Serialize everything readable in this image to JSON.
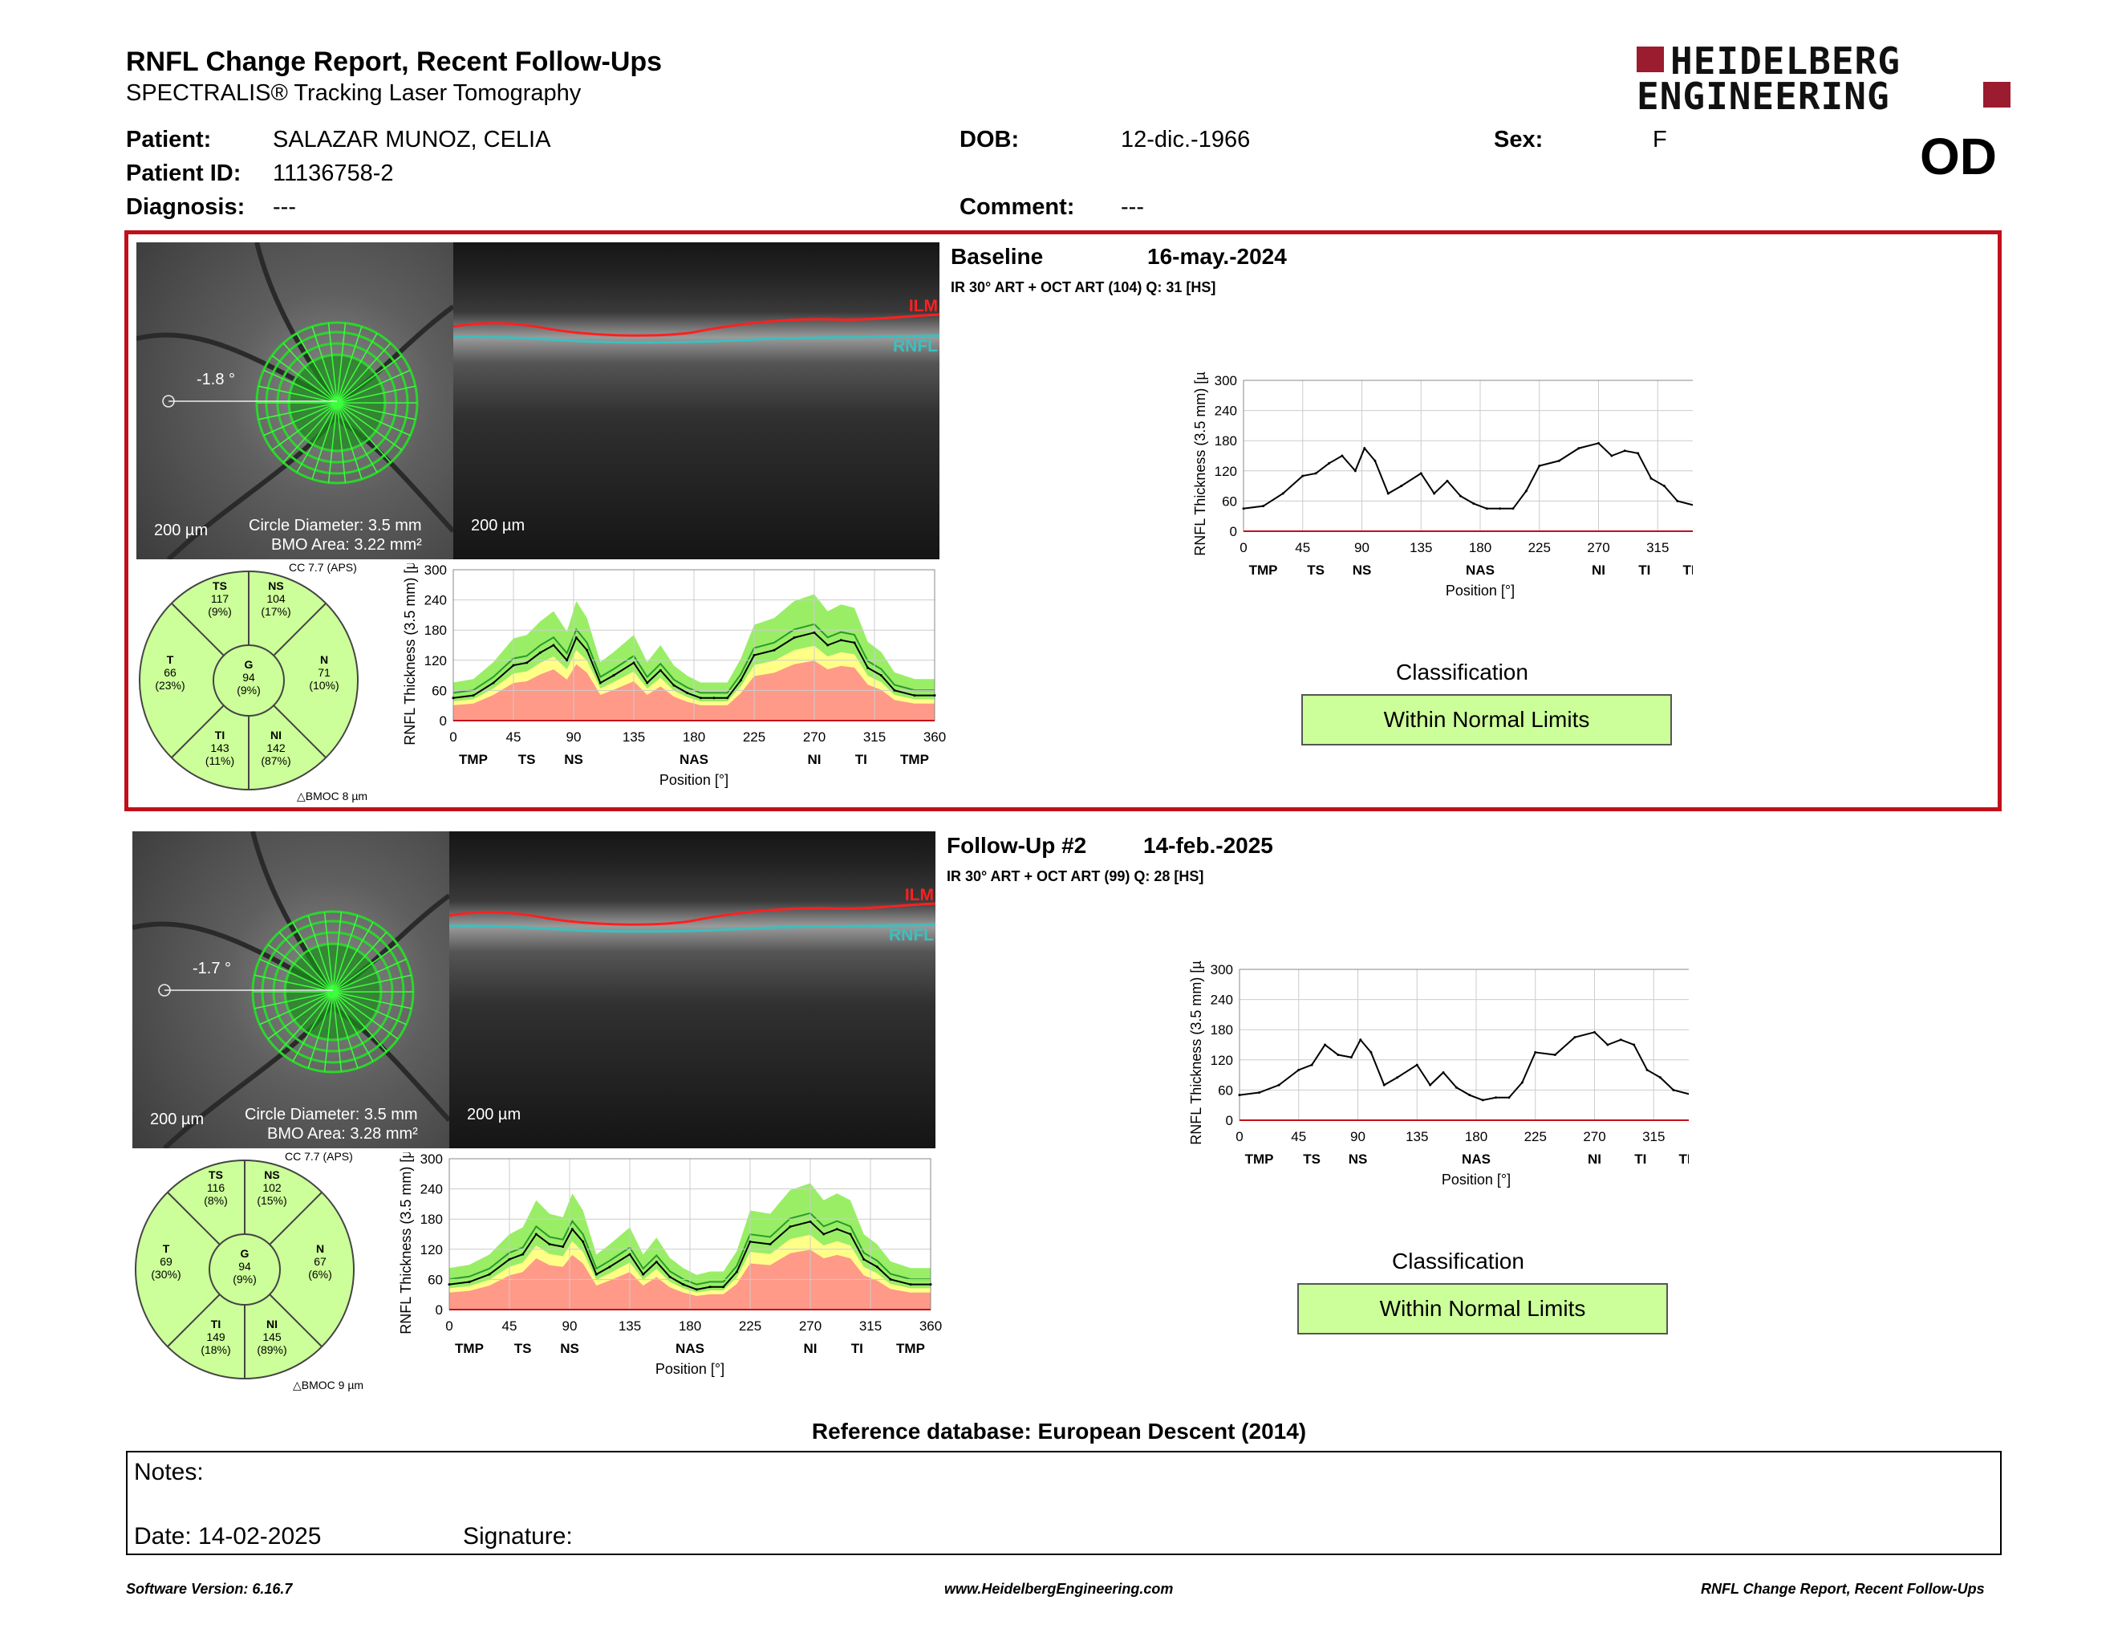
{
  "header": {
    "title": "RNFL Change Report, Recent Follow-Ups",
    "subtitle": "SPECTRALIS® Tracking Laser Tomography",
    "logo_line1": "HEIDELBERG",
    "logo_line2": "ENGINEERING",
    "eye": "OD"
  },
  "patient": {
    "patient_label": "Patient:",
    "patient_value": "SALAZAR MUNOZ, CELIA",
    "id_label": "Patient ID:",
    "id_value": "11136758-2",
    "diagnosis_label": "Diagnosis:",
    "diagnosis_value": "---",
    "dob_label": "DOB:",
    "dob_value": "12-dic.-1966",
    "comment_label": "Comment:",
    "comment_value": "---",
    "sex_label": "Sex:",
    "sex_value": "F"
  },
  "exams": [
    {
      "name": "Baseline",
      "date": "16-may.-2024",
      "scan_info": "IR 30° ART + OCT ART (104) Q: 31 [HS]",
      "angle": "-1.8 °",
      "scale_fundus": "200 µm",
      "scale_bscan": "200 µm",
      "circle_diameter": "Circle Diameter: 3.5 mm",
      "bmo_area": "BMO Area: 3.22 mm²",
      "cc": "CC 7.7 (APS)",
      "bmoc_delta": "BMOC 8 µm",
      "ilm": "ILM",
      "rnfl": "RNFL",
      "sectors": {
        "TS": {
          "label": "TS",
          "value": "117",
          "pct": "(9%)"
        },
        "NS": {
          "label": "NS",
          "value": "104",
          "pct": "(17%)"
        },
        "T": {
          "label": "T",
          "value": "66",
          "pct": "(23%)"
        },
        "G": {
          "label": "G",
          "value": "94",
          "pct": "(9%)"
        },
        "N": {
          "label": "N",
          "value": "71",
          "pct": "(10%)"
        },
        "TI": {
          "label": "TI",
          "value": "143",
          "pct": "(11%)"
        },
        "NI": {
          "label": "NI",
          "value": "142",
          "pct": "(87%)"
        }
      },
      "classification_title": "Classification",
      "classification": "Within Normal Limits"
    },
    {
      "name": "Follow-Up #2",
      "date": "14-feb.-2025",
      "scan_info": "IR 30° ART + OCT ART (99) Q: 28 [HS]",
      "angle": "-1.7 °",
      "scale_fundus": "200 µm",
      "scale_bscan": "200 µm",
      "circle_diameter": "Circle Diameter: 3.5 mm",
      "bmo_area": "BMO Area: 3.28 mm²",
      "cc": "CC 7.7 (APS)",
      "bmoc_delta": "BMOC 9 µm",
      "ilm": "ILM",
      "rnfl": "RNFL",
      "sectors": {
        "TS": {
          "label": "TS",
          "value": "116",
          "pct": "(8%)"
        },
        "NS": {
          "label": "NS",
          "value": "102",
          "pct": "(15%)"
        },
        "T": {
          "label": "T",
          "value": "69",
          "pct": "(30%)"
        },
        "G": {
          "label": "G",
          "value": "94",
          "pct": "(9%)"
        },
        "N": {
          "label": "N",
          "value": "67",
          "pct": "(6%)"
        },
        "TI": {
          "label": "TI",
          "value": "149",
          "pct": "(18%)"
        },
        "NI": {
          "label": "NI",
          "value": "145",
          "pct": "(89%)"
        }
      },
      "classification_title": "Classification",
      "classification": "Within Normal Limits"
    }
  ],
  "colors": {
    "frame_red": "#c0101c",
    "normal_green": "#99ee66",
    "borderline_yellow": "#ffff88",
    "outside_red": "#ff9988",
    "classification_bg": "#ccff99",
    "logo_red": "#9b1b2f"
  },
  "chart_data": [
    {
      "type": "line",
      "ylabel": "RNFL Thickness (3.5 mm) [µm]",
      "xlabel": "Position [°]",
      "xlim": [
        0,
        360
      ],
      "ylim": [
        0,
        300
      ],
      "xticks": [
        "0",
        "45",
        "90",
        "135",
        "180",
        "225",
        "270",
        "315",
        "360"
      ],
      "yticks": [
        "0",
        "60",
        "120",
        "180",
        "240",
        "300"
      ],
      "sector_labels": [
        "TMP",
        "TS",
        "NS",
        "NAS",
        "NI",
        "TI",
        "TMP"
      ],
      "x": [
        0,
        15,
        30,
        45,
        55,
        65,
        75,
        85,
        92,
        100,
        110,
        120,
        135,
        145,
        155,
        165,
        175,
        185,
        195,
        205,
        215,
        225,
        240,
        255,
        270,
        280,
        290,
        300,
        310,
        320,
        330,
        345,
        360
      ],
      "series": [
        {
          "values": [
            45,
            50,
            75,
            110,
            115,
            135,
            150,
            120,
            165,
            140,
            75,
            90,
            115,
            75,
            100,
            70,
            55,
            45,
            45,
            45,
            80,
            130,
            140,
            165,
            175,
            150,
            160,
            155,
            105,
            90,
            60,
            50,
            50
          ]
        }
      ]
    },
    {
      "type": "line",
      "ylabel": "RNFL Thickness (3.5 mm) [µm]",
      "xlabel": "Position [°]",
      "xlim": [
        0,
        360
      ],
      "ylim": [
        0,
        300
      ],
      "xticks": [
        "0",
        "45",
        "90",
        "135",
        "180",
        "225",
        "270",
        "315",
        "360"
      ],
      "yticks": [
        "0",
        "60",
        "120",
        "180",
        "240",
        "300"
      ],
      "sector_labels": [
        "TMP",
        "TS",
        "NS",
        "NAS",
        "NI",
        "TI",
        "TMP"
      ],
      "x": [
        0,
        15,
        30,
        45,
        55,
        65,
        75,
        85,
        92,
        100,
        110,
        120,
        135,
        145,
        155,
        165,
        175,
        185,
        195,
        205,
        215,
        225,
        240,
        255,
        270,
        280,
        290,
        300,
        310,
        320,
        330,
        345,
        360
      ],
      "series": [
        {
          "values": [
            50,
            55,
            70,
            100,
            110,
            150,
            130,
            125,
            160,
            135,
            70,
            85,
            110,
            70,
            95,
            65,
            50,
            40,
            45,
            45,
            75,
            135,
            130,
            165,
            175,
            150,
            160,
            150,
            100,
            85,
            60,
            50,
            50
          ]
        }
      ]
    }
  ],
  "reference": "Reference database: European Descent (2014)",
  "notes": {
    "notes_label": "Notes:",
    "date_label": "Date: 14-02-2025",
    "signature_label": "Signature:"
  },
  "footer": {
    "left": "Software Version: 6.16.7",
    "center": "www.HeidelbergEngineering.com",
    "right": "RNFL Change Report, Recent Follow-Ups"
  }
}
